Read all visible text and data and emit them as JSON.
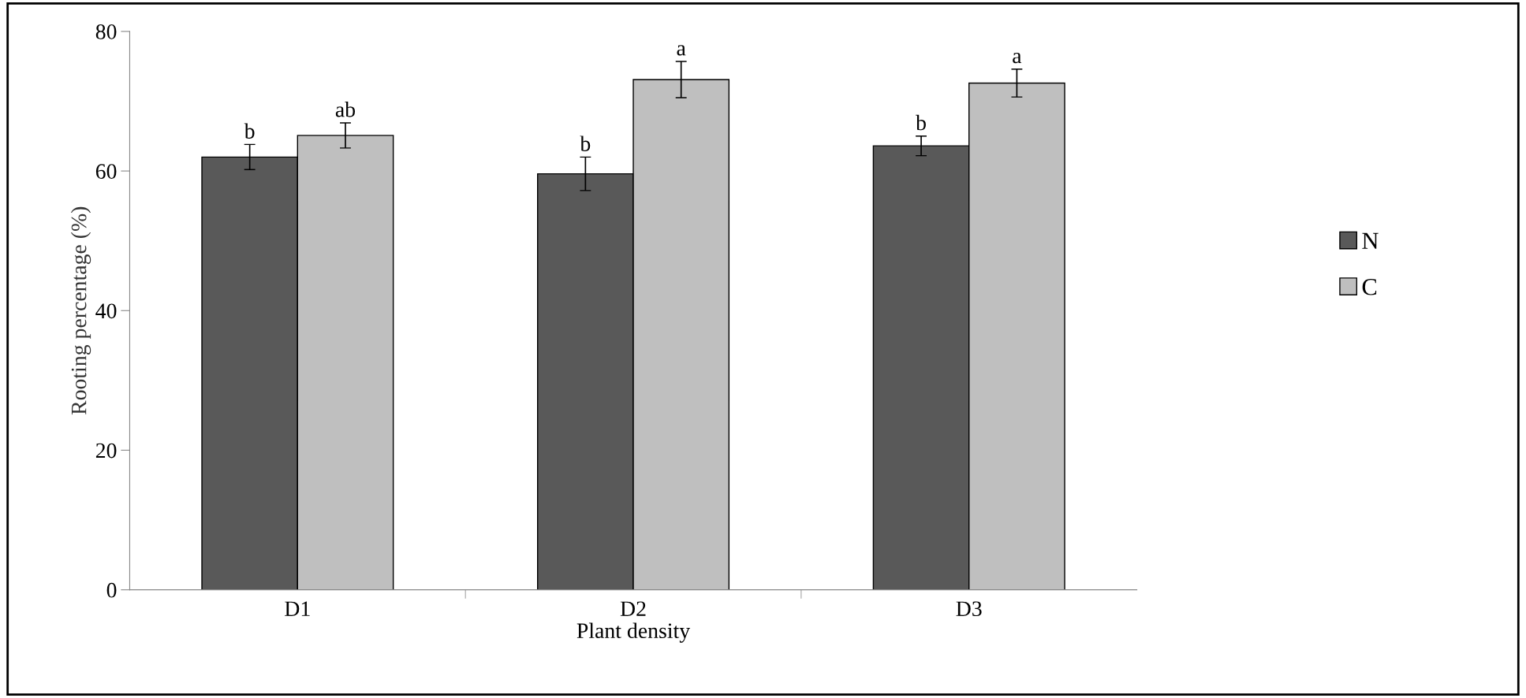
{
  "chart_data": {
    "type": "bar",
    "xlabel": "Plant density",
    "ylabel": "Rooting percentage (%)",
    "categories": [
      "D1",
      "D2",
      "D3"
    ],
    "series": [
      {
        "name": "N",
        "color": "#595959",
        "values": [
          62.0,
          59.6,
          63.6
        ],
        "errors": [
          1.8,
          2.4,
          1.4
        ]
      },
      {
        "name": "C",
        "color": "#bfbfbf",
        "values": [
          65.1,
          73.1,
          72.6
        ],
        "errors": [
          1.8,
          2.6,
          2.0
        ]
      }
    ],
    "annotations": [
      "b",
      "b",
      "b",
      "ab",
      "a",
      "a"
    ],
    "ylim": [
      0,
      80
    ],
    "yticks": [
      0,
      20,
      40,
      60,
      80
    ],
    "grid": false,
    "legend": "right"
  }
}
